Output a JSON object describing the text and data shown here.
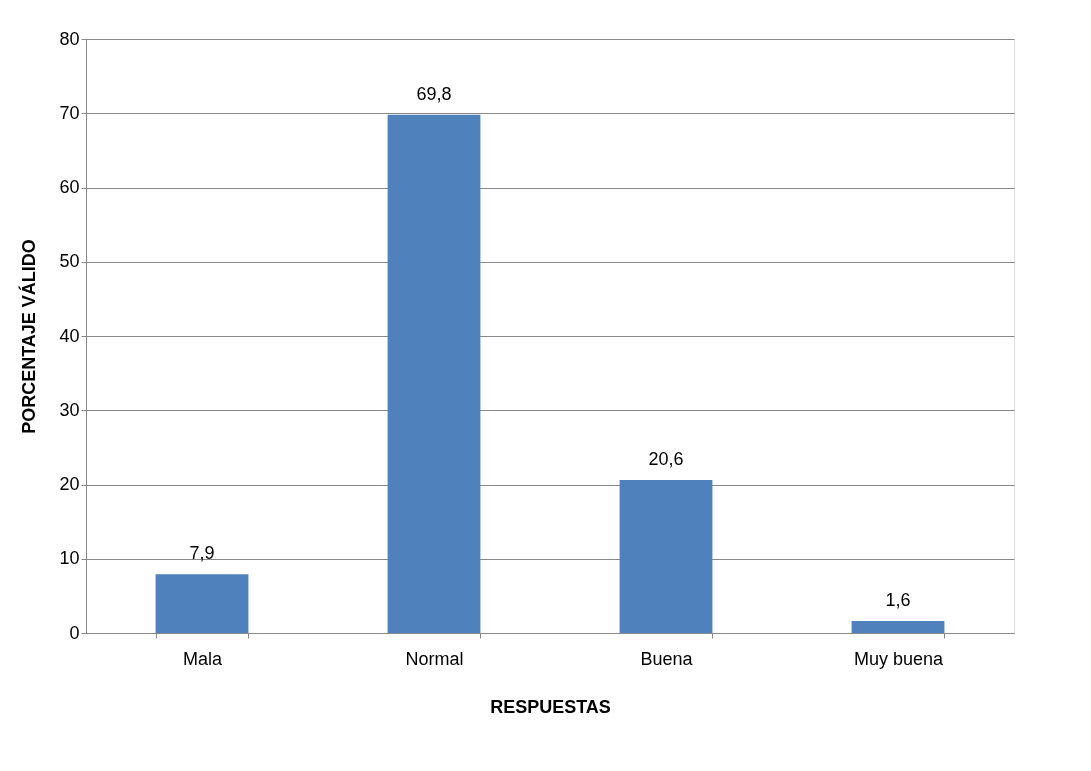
{
  "chart_data": {
    "type": "bar",
    "xlabel": "RESPUESTAS",
    "ylabel": "PORCENTAJE VÁLIDO",
    "categories": [
      "Mala",
      "Normal",
      "Buena",
      "Muy buena"
    ],
    "values": [
      7.9,
      69.8,
      20.6,
      1.6
    ],
    "value_labels": [
      "7,9",
      "69,8",
      "20,6",
      "1,6"
    ],
    "color": "#4f81bd",
    "ylim": [
      0,
      80
    ],
    "yticks": [
      0,
      10,
      20,
      30,
      40,
      50,
      60,
      70,
      80
    ],
    "grid": "y"
  }
}
